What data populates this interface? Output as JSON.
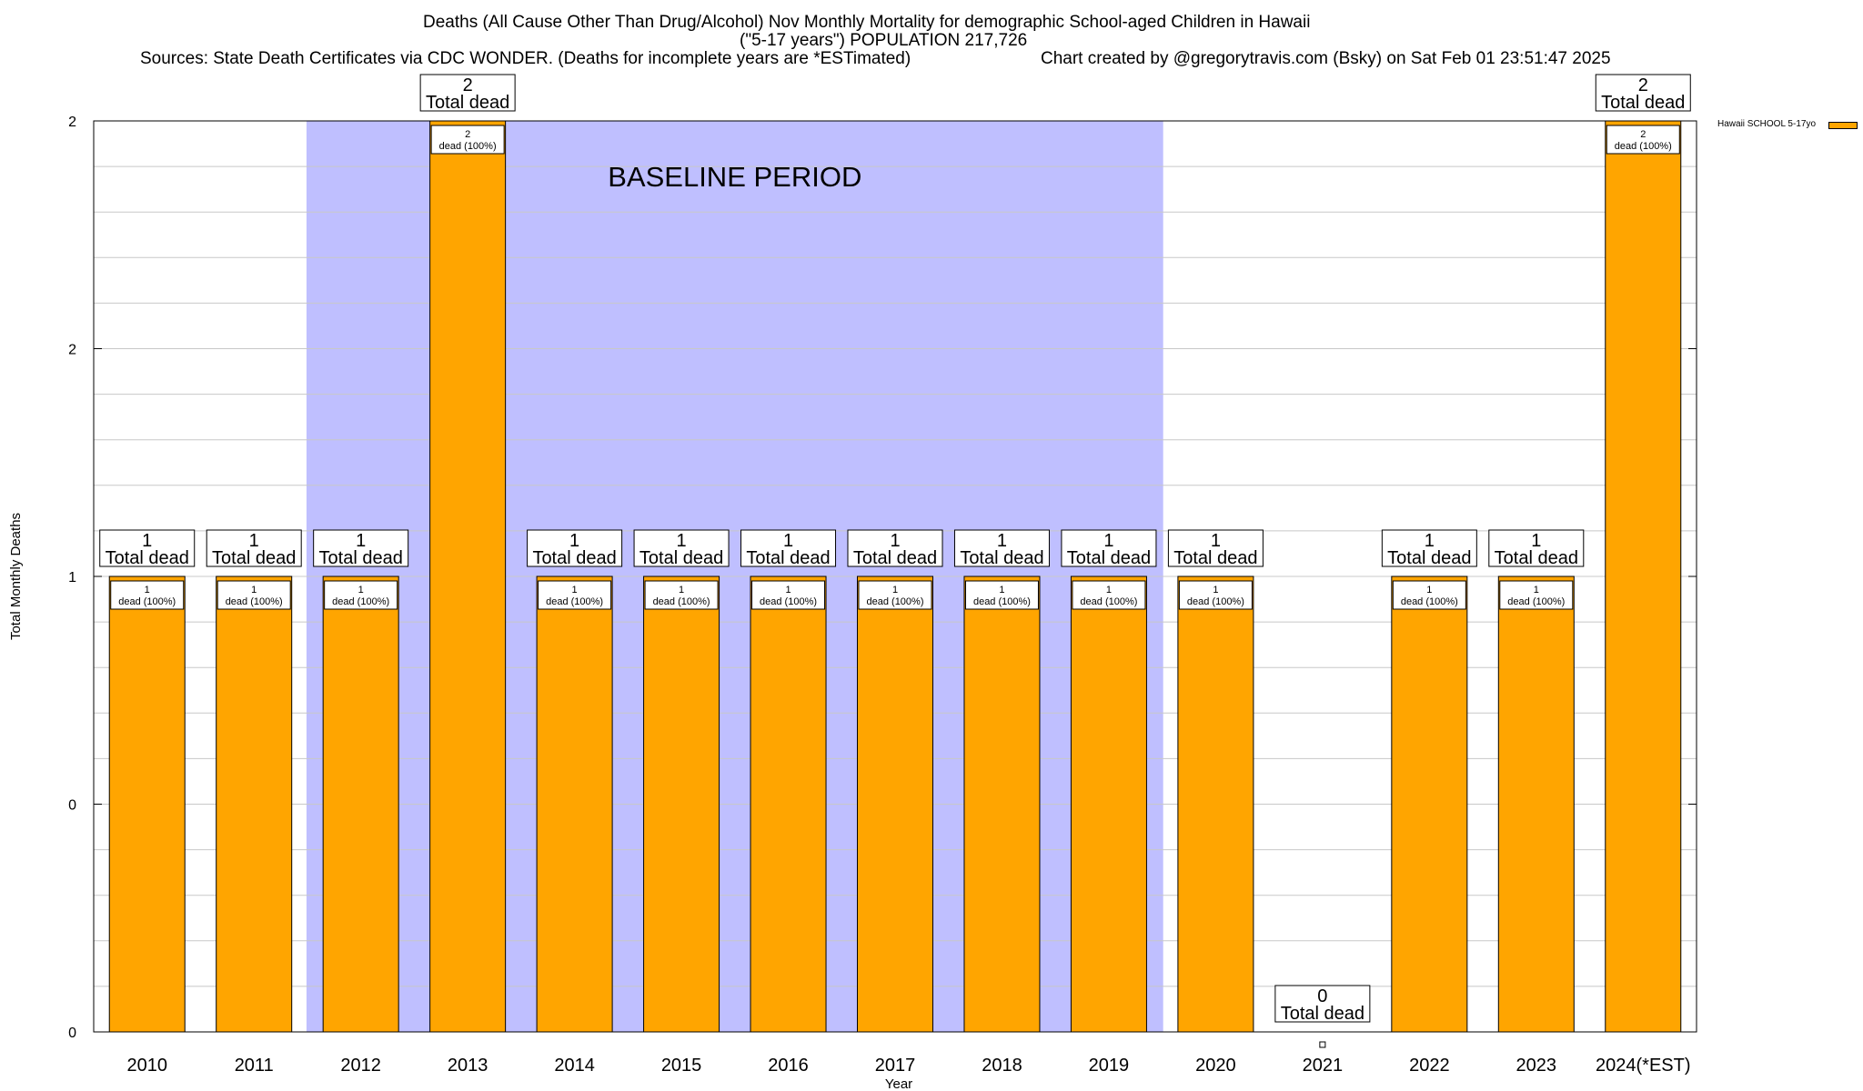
{
  "title": {
    "line1": "Deaths (All Cause Other Than Drug/Alcohol) Nov Monthly Mortality for demographic School-aged Children in Hawaii",
    "line2": "(\"5-17 years\") POPULATION 217,726",
    "sources": "Sources: State Death Certificates via CDC WONDER. (Deaths for incomplete years are *ESTimated)",
    "credit": "Chart created by @gregorytravis.com (Bsky) on Sat Feb 01 23:51:47 2025"
  },
  "legend": {
    "label": "Hawaii SCHOOL 5-17yo"
  },
  "colors": {
    "bar": "#FFA500",
    "baseline": "#BFBFFF",
    "grid": "#C8C8C8"
  },
  "chart_data": {
    "type": "bar",
    "title": "Deaths (All Cause Other Than Drug/Alcohol) Nov Monthly Mortality for demographic School-aged Children in Hawaii",
    "xlabel": "Year",
    "ylabel": "Total Monthly Deaths",
    "ylim": [
      0,
      2
    ],
    "y_tick_values": [
      0,
      0.5,
      1,
      1.5,
      2
    ],
    "y_tick_labels": [
      "0",
      "0",
      "1",
      "2",
      "2"
    ],
    "grid": true,
    "legend_position": "top-right",
    "categories": [
      "2010",
      "2011",
      "2012",
      "2013",
      "2014",
      "2015",
      "2016",
      "2017",
      "2018",
      "2019",
      "2020",
      "2021",
      "2022",
      "2023",
      "2024(*EST)"
    ],
    "series": [
      {
        "name": "Hawaii SCHOOL 5-17yo",
        "values": [
          1,
          1,
          1,
          2,
          1,
          1,
          1,
          1,
          1,
          1,
          1,
          0,
          1,
          1,
          2
        ]
      }
    ],
    "total_label_suffix": "Total dead",
    "inner_label_suffix": "dead (100%)",
    "baseline": {
      "label": "BASELINE PERIOD",
      "from": "2012",
      "to": "2019"
    }
  }
}
